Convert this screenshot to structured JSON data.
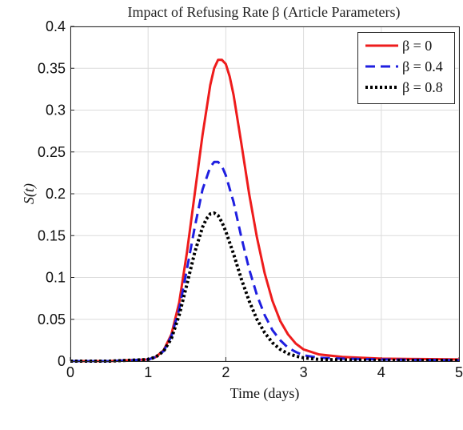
{
  "chart_data": {
    "type": "line",
    "title": "Impact of Refusing Rate β (Article Parameters)",
    "xlabel": "Time (days)",
    "ylabel": "S(t)",
    "xlim": [
      0,
      5
    ],
    "ylim": [
      0,
      0.4
    ],
    "xticks": [
      0,
      1,
      2,
      3,
      4,
      5
    ],
    "yticks": [
      0,
      0.05,
      0.1,
      0.15,
      0.2,
      0.25,
      0.3,
      0.35,
      0.4
    ],
    "grid": true,
    "legend": "top-right",
    "series": [
      {
        "name": "β = 0",
        "color": "#ee1c1c",
        "dash": "solid",
        "x": [
          0,
          0.5,
          1.0,
          1.1,
          1.2,
          1.3,
          1.4,
          1.5,
          1.6,
          1.7,
          1.8,
          1.85,
          1.9,
          1.95,
          2.0,
          2.05,
          2.1,
          2.2,
          2.3,
          2.4,
          2.5,
          2.6,
          2.7,
          2.8,
          2.9,
          3.0,
          3.2,
          3.5,
          4.0,
          4.5,
          5.0
        ],
        "y": [
          0,
          0,
          0.002,
          0.005,
          0.013,
          0.032,
          0.07,
          0.13,
          0.2,
          0.27,
          0.33,
          0.35,
          0.36,
          0.36,
          0.355,
          0.34,
          0.318,
          0.26,
          0.2,
          0.148,
          0.105,
          0.072,
          0.048,
          0.032,
          0.021,
          0.014,
          0.008,
          0.005,
          0.003,
          0.0025,
          0.002
        ]
      },
      {
        "name": "β = 0.4",
        "color": "#1f1fe0",
        "dash": "dashed",
        "x": [
          0,
          0.5,
          1.0,
          1.1,
          1.2,
          1.3,
          1.4,
          1.5,
          1.6,
          1.7,
          1.8,
          1.85,
          1.9,
          1.95,
          2.0,
          2.1,
          2.2,
          2.3,
          2.4,
          2.5,
          2.6,
          2.7,
          2.8,
          2.9,
          3.0,
          3.2,
          3.5,
          4.0,
          4.5,
          5.0
        ],
        "y": [
          0,
          0,
          0.002,
          0.005,
          0.012,
          0.03,
          0.062,
          0.11,
          0.16,
          0.205,
          0.232,
          0.238,
          0.238,
          0.233,
          0.222,
          0.19,
          0.148,
          0.11,
          0.079,
          0.055,
          0.037,
          0.025,
          0.016,
          0.011,
          0.007,
          0.004,
          0.003,
          0.002,
          0.0015,
          0.001
        ]
      },
      {
        "name": "β = 0.8",
        "color": "#000000",
        "dash": "dotted",
        "x": [
          0,
          0.5,
          1.0,
          1.1,
          1.2,
          1.3,
          1.4,
          1.5,
          1.6,
          1.7,
          1.75,
          1.8,
          1.85,
          1.9,
          1.95,
          2.0,
          2.1,
          2.2,
          2.3,
          2.4,
          2.5,
          2.6,
          2.7,
          2.8,
          2.9,
          3.0,
          3.2,
          3.5,
          4.0,
          4.5,
          5.0
        ],
        "y": [
          0,
          0,
          0.002,
          0.005,
          0.012,
          0.027,
          0.055,
          0.092,
          0.13,
          0.16,
          0.17,
          0.176,
          0.177,
          0.174,
          0.166,
          0.155,
          0.128,
          0.098,
          0.072,
          0.05,
          0.034,
          0.022,
          0.014,
          0.009,
          0.006,
          0.004,
          0.002,
          0.0015,
          0.001,
          0.001,
          0.001
        ]
      }
    ]
  }
}
